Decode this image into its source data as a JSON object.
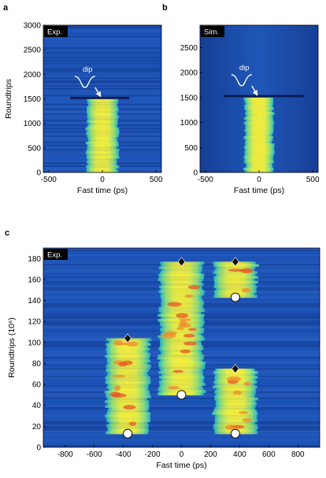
{
  "figure": {
    "colors": {
      "background": "#1c4fb0",
      "background_dark": "#163f96",
      "signal_low": "#27b6c7",
      "signal_mid": "#8fe07a",
      "signal_high": "#f4ec3c",
      "signal_peak": "#f08a2c",
      "dip": "#0b1d55",
      "annotation": "#ffffff",
      "tag_bg": "#000000"
    }
  },
  "chart_data": [
    {
      "panel": "a",
      "type": "heatmap",
      "tag": "Exp.",
      "xlabel": "Fast time (ps)",
      "ylabel": "Roundtrips",
      "xlim": [
        -550,
        550
      ],
      "ylim": [
        0,
        3000
      ],
      "xticks": [
        -500,
        0,
        500
      ],
      "yticks": [
        0,
        500,
        1000,
        1500,
        2000,
        2500,
        3000
      ],
      "structures": [
        {
          "kind": "pulse",
          "x_center": 0,
          "x_width": 300,
          "y_start": 0,
          "y_end": 1500
        },
        {
          "kind": "dip",
          "x_range": [
            -300,
            250
          ],
          "y": 1520
        }
      ],
      "annotation": {
        "text": "dip",
        "x": -170,
        "y": 2020,
        "arrow_to": [
          -20,
          1560
        ]
      }
    },
    {
      "panel": "b",
      "type": "heatmap",
      "tag": "Sim.",
      "xlabel": "Fast time (ps)",
      "ylabel": "",
      "xlim": [
        -550,
        550
      ],
      "ylim": [
        0,
        2950
      ],
      "xticks": [
        -500,
        0,
        500
      ],
      "yticks": [
        0,
        500,
        1000,
        1500,
        2000,
        2500
      ],
      "structures": [
        {
          "kind": "pulse",
          "x_center": 0,
          "x_width": 270,
          "y_start": 0,
          "y_end": 1500
        },
        {
          "kind": "dip",
          "x_range": [
            -330,
            420
          ],
          "y": 1530
        }
      ],
      "annotation": {
        "text": "dip",
        "x": -170,
        "y": 2020,
        "arrow_to": [
          -20,
          1560
        ]
      }
    },
    {
      "panel": "c",
      "type": "heatmap",
      "tag": "Exp.",
      "xlabel": "Fast time (ps)",
      "ylabel": "Roundtrips (10⁶)",
      "xlim": [
        -950,
        950
      ],
      "ylim": [
        0,
        190
      ],
      "xticks": [
        -800,
        -600,
        -400,
        -200,
        0,
        200,
        400,
        600,
        800
      ],
      "yticks": [
        0,
        20,
        40,
        60,
        80,
        100,
        120,
        140,
        160,
        180
      ],
      "structures": [
        {
          "kind": "pulse",
          "x_center": -370,
          "x_width": 300,
          "y_start": 13,
          "y_end": 104
        },
        {
          "kind": "pulse",
          "x_center": 0,
          "x_width": 310,
          "y_start": 50,
          "y_end": 177
        },
        {
          "kind": "pulse",
          "x_center": 370,
          "x_width": 300,
          "y_start": 13,
          "y_end": 75
        },
        {
          "kind": "pulse",
          "x_center": 370,
          "x_width": 300,
          "y_start": 143,
          "y_end": 177
        }
      ],
      "markers": {
        "birth_circles": [
          {
            "x": -370,
            "y": 13
          },
          {
            "x": 0,
            "y": 50
          },
          {
            "x": 370,
            "y": 13
          },
          {
            "x": 370,
            "y": 143
          }
        ],
        "death_diamonds": [
          {
            "x": -370,
            "y": 104
          },
          {
            "x": 0,
            "y": 177
          },
          {
            "x": 370,
            "y": 75
          },
          {
            "x": 370,
            "y": 177
          }
        ]
      }
    }
  ]
}
